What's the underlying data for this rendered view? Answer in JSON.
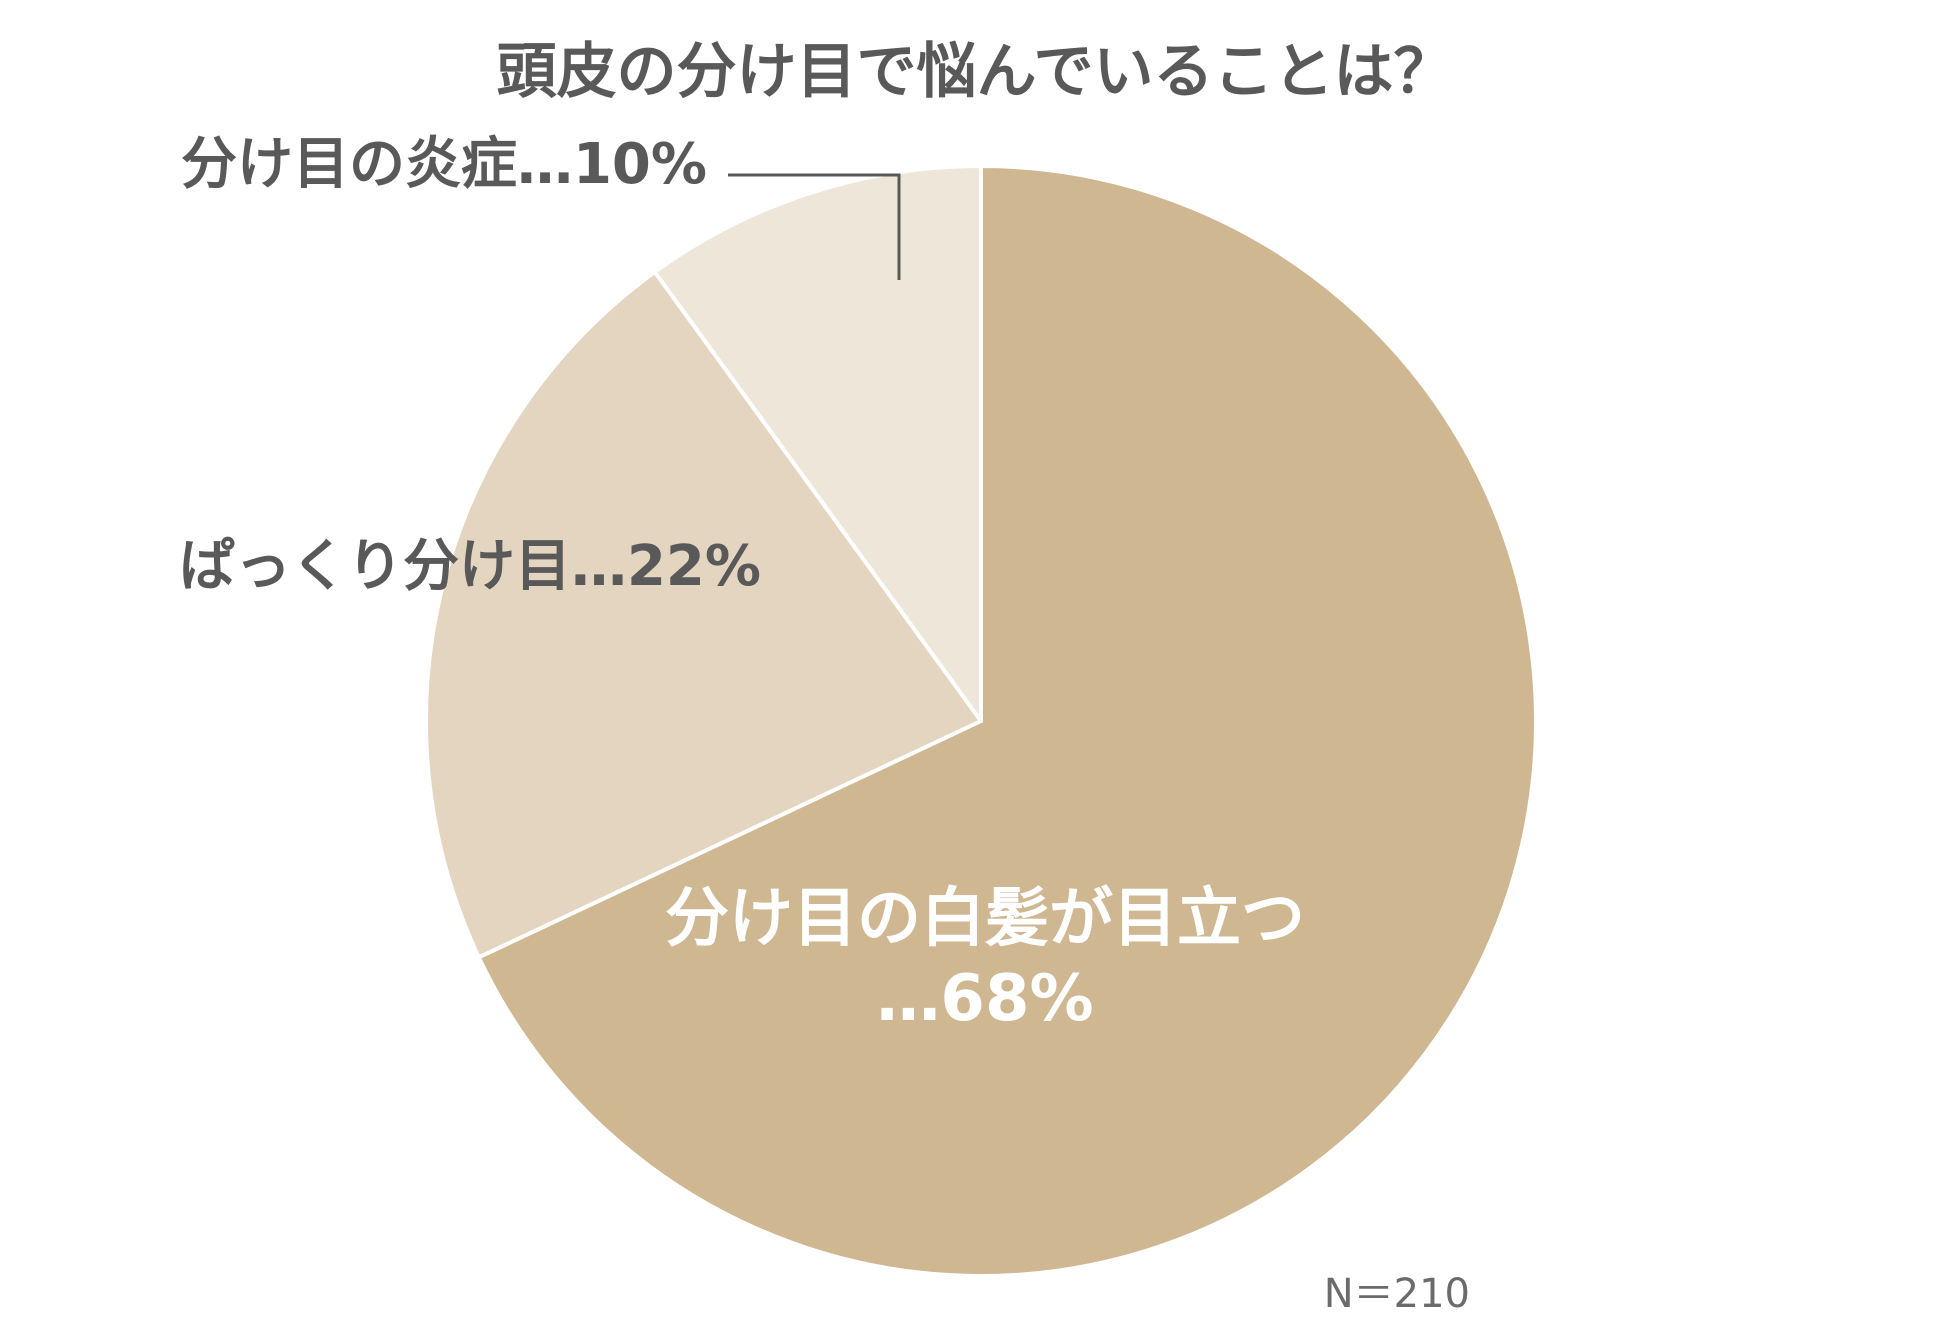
{
  "chart_data": {
    "type": "pie",
    "title": "頭皮の分け目で悩んでいることは？",
    "start": "top",
    "direction": "clockwise",
    "slices": [
      {
        "label_lines": [
          "分け目の白髪が目立つ",
          "…68%"
        ],
        "value": 68,
        "color": "#cfb792",
        "label_color": "#ffffff"
      },
      {
        "label_lines": [
          "ぱっくり分け目…22%"
        ],
        "value": 22,
        "color": "#e4d5c0",
        "label_color": "#595959"
      },
      {
        "label_lines": [
          "分け目の炎症…10%"
        ],
        "value": 10,
        "color": "#efe6da",
        "label_color": "#595959",
        "leader_line": true
      }
    ],
    "note": "N＝210",
    "colors": {
      "separator": "#ffffff",
      "leader_line": "#595959",
      "text_dark": "#595959"
    }
  }
}
